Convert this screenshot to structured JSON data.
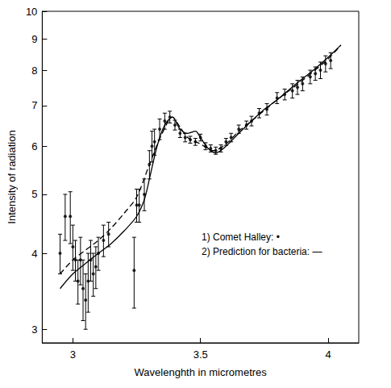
{
  "chart_data": {
    "type": "scatter",
    "x_label": "Wavelenghth in micrometres",
    "y_label": "Intensity of radiation",
    "annotations": [
      "1) Comet Halley: •",
      "2) Prediction for bacteria: —"
    ],
    "log": "y",
    "grid": false,
    "xlim": [
      2.88,
      4.12
    ],
    "xticks": [
      3,
      3.5,
      4
    ],
    "ylim": [
      2.85,
      10
    ],
    "yticks": [
      3,
      4,
      5,
      6,
      7,
      8,
      9,
      10
    ],
    "series": [
      {
        "type": "scatter",
        "marker": "circle",
        "color": "#000000",
        "x": [
          2.95,
          2.97,
          2.99,
          3.0,
          3.01,
          3.02,
          3.03,
          3.04,
          3.05,
          3.06,
          3.07,
          3.08,
          3.09,
          3.1,
          3.12,
          3.14,
          3.24,
          3.25,
          3.26,
          3.28,
          3.3,
          3.31,
          3.32,
          3.34,
          3.36,
          3.38,
          3.4,
          3.42,
          3.44,
          3.46,
          3.48,
          3.5,
          3.52,
          3.54,
          3.56,
          3.58,
          3.6,
          3.62,
          3.65,
          3.68,
          3.7,
          3.73,
          3.76,
          3.8,
          3.83,
          3.86,
          3.88,
          3.9,
          3.93,
          3.95,
          3.97,
          3.99,
          4.01
        ],
        "values": [
          4.0,
          4.6,
          4.6,
          4.1,
          3.9,
          3.6,
          3.9,
          3.5,
          3.35,
          3.6,
          3.9,
          3.7,
          3.8,
          4.0,
          4.2,
          4.3,
          3.75,
          4.8,
          4.8,
          5.0,
          5.6,
          6.0,
          6.1,
          6.4,
          6.6,
          6.7,
          6.5,
          6.3,
          6.2,
          6.15,
          6.1,
          6.2,
          6.0,
          5.95,
          5.9,
          5.95,
          6.1,
          6.2,
          6.4,
          6.5,
          6.6,
          6.8,
          6.9,
          7.2,
          7.3,
          7.4,
          7.5,
          7.6,
          7.8,
          7.9,
          8.0,
          8.2,
          8.3
        ],
        "errors": [
          0.3,
          0.4,
          0.45,
          0.35,
          0.3,
          0.3,
          0.35,
          0.4,
          0.35,
          0.4,
          0.3,
          0.3,
          0.3,
          0.25,
          0.25,
          0.2,
          0.5,
          0.3,
          0.3,
          0.3,
          0.3,
          0.35,
          0.3,
          0.25,
          0.2,
          0.15,
          0.12,
          0.1,
          0.1,
          0.08,
          0.08,
          0.08,
          0.08,
          0.08,
          0.08,
          0.08,
          0.08,
          0.1,
          0.1,
          0.1,
          0.12,
          0.12,
          0.15,
          0.15,
          0.15,
          0.2,
          0.2,
          0.2,
          0.2,
          0.2,
          0.25,
          0.25,
          0.25
        ]
      },
      {
        "type": "line",
        "line_style": "solid",
        "color": "#000000",
        "x": [
          2.95,
          3.0,
          3.05,
          3.1,
          3.15,
          3.2,
          3.25,
          3.28,
          3.3,
          3.33,
          3.36,
          3.39,
          3.42,
          3.45,
          3.48,
          3.5,
          3.53,
          3.56,
          3.6,
          3.65,
          3.7,
          3.75,
          3.8,
          3.85,
          3.9,
          3.95,
          4.0,
          4.05
        ],
        "values": [
          3.5,
          3.7,
          3.85,
          4.0,
          4.15,
          4.35,
          4.6,
          4.9,
          5.3,
          6.0,
          6.5,
          6.7,
          6.4,
          6.3,
          6.35,
          6.2,
          5.95,
          5.85,
          6.0,
          6.3,
          6.6,
          6.9,
          7.15,
          7.45,
          7.75,
          8.05,
          8.4,
          8.8
        ]
      },
      {
        "type": "line",
        "line_style": "dashed",
        "color": "#000000",
        "x": [
          2.95,
          3.0,
          3.05,
          3.1,
          3.15,
          3.2,
          3.25,
          3.3,
          3.35,
          3.39,
          3.42,
          3.45,
          3.5,
          3.55,
          3.6,
          3.65,
          3.7,
          3.8,
          3.9,
          4.0,
          4.05
        ],
        "values": [
          3.7,
          3.9,
          4.05,
          4.2,
          4.4,
          4.65,
          4.95,
          5.6,
          6.3,
          6.7,
          6.45,
          6.2,
          6.05,
          5.9,
          6.05,
          6.35,
          6.6,
          7.15,
          7.7,
          8.35,
          8.8
        ]
      }
    ]
  }
}
